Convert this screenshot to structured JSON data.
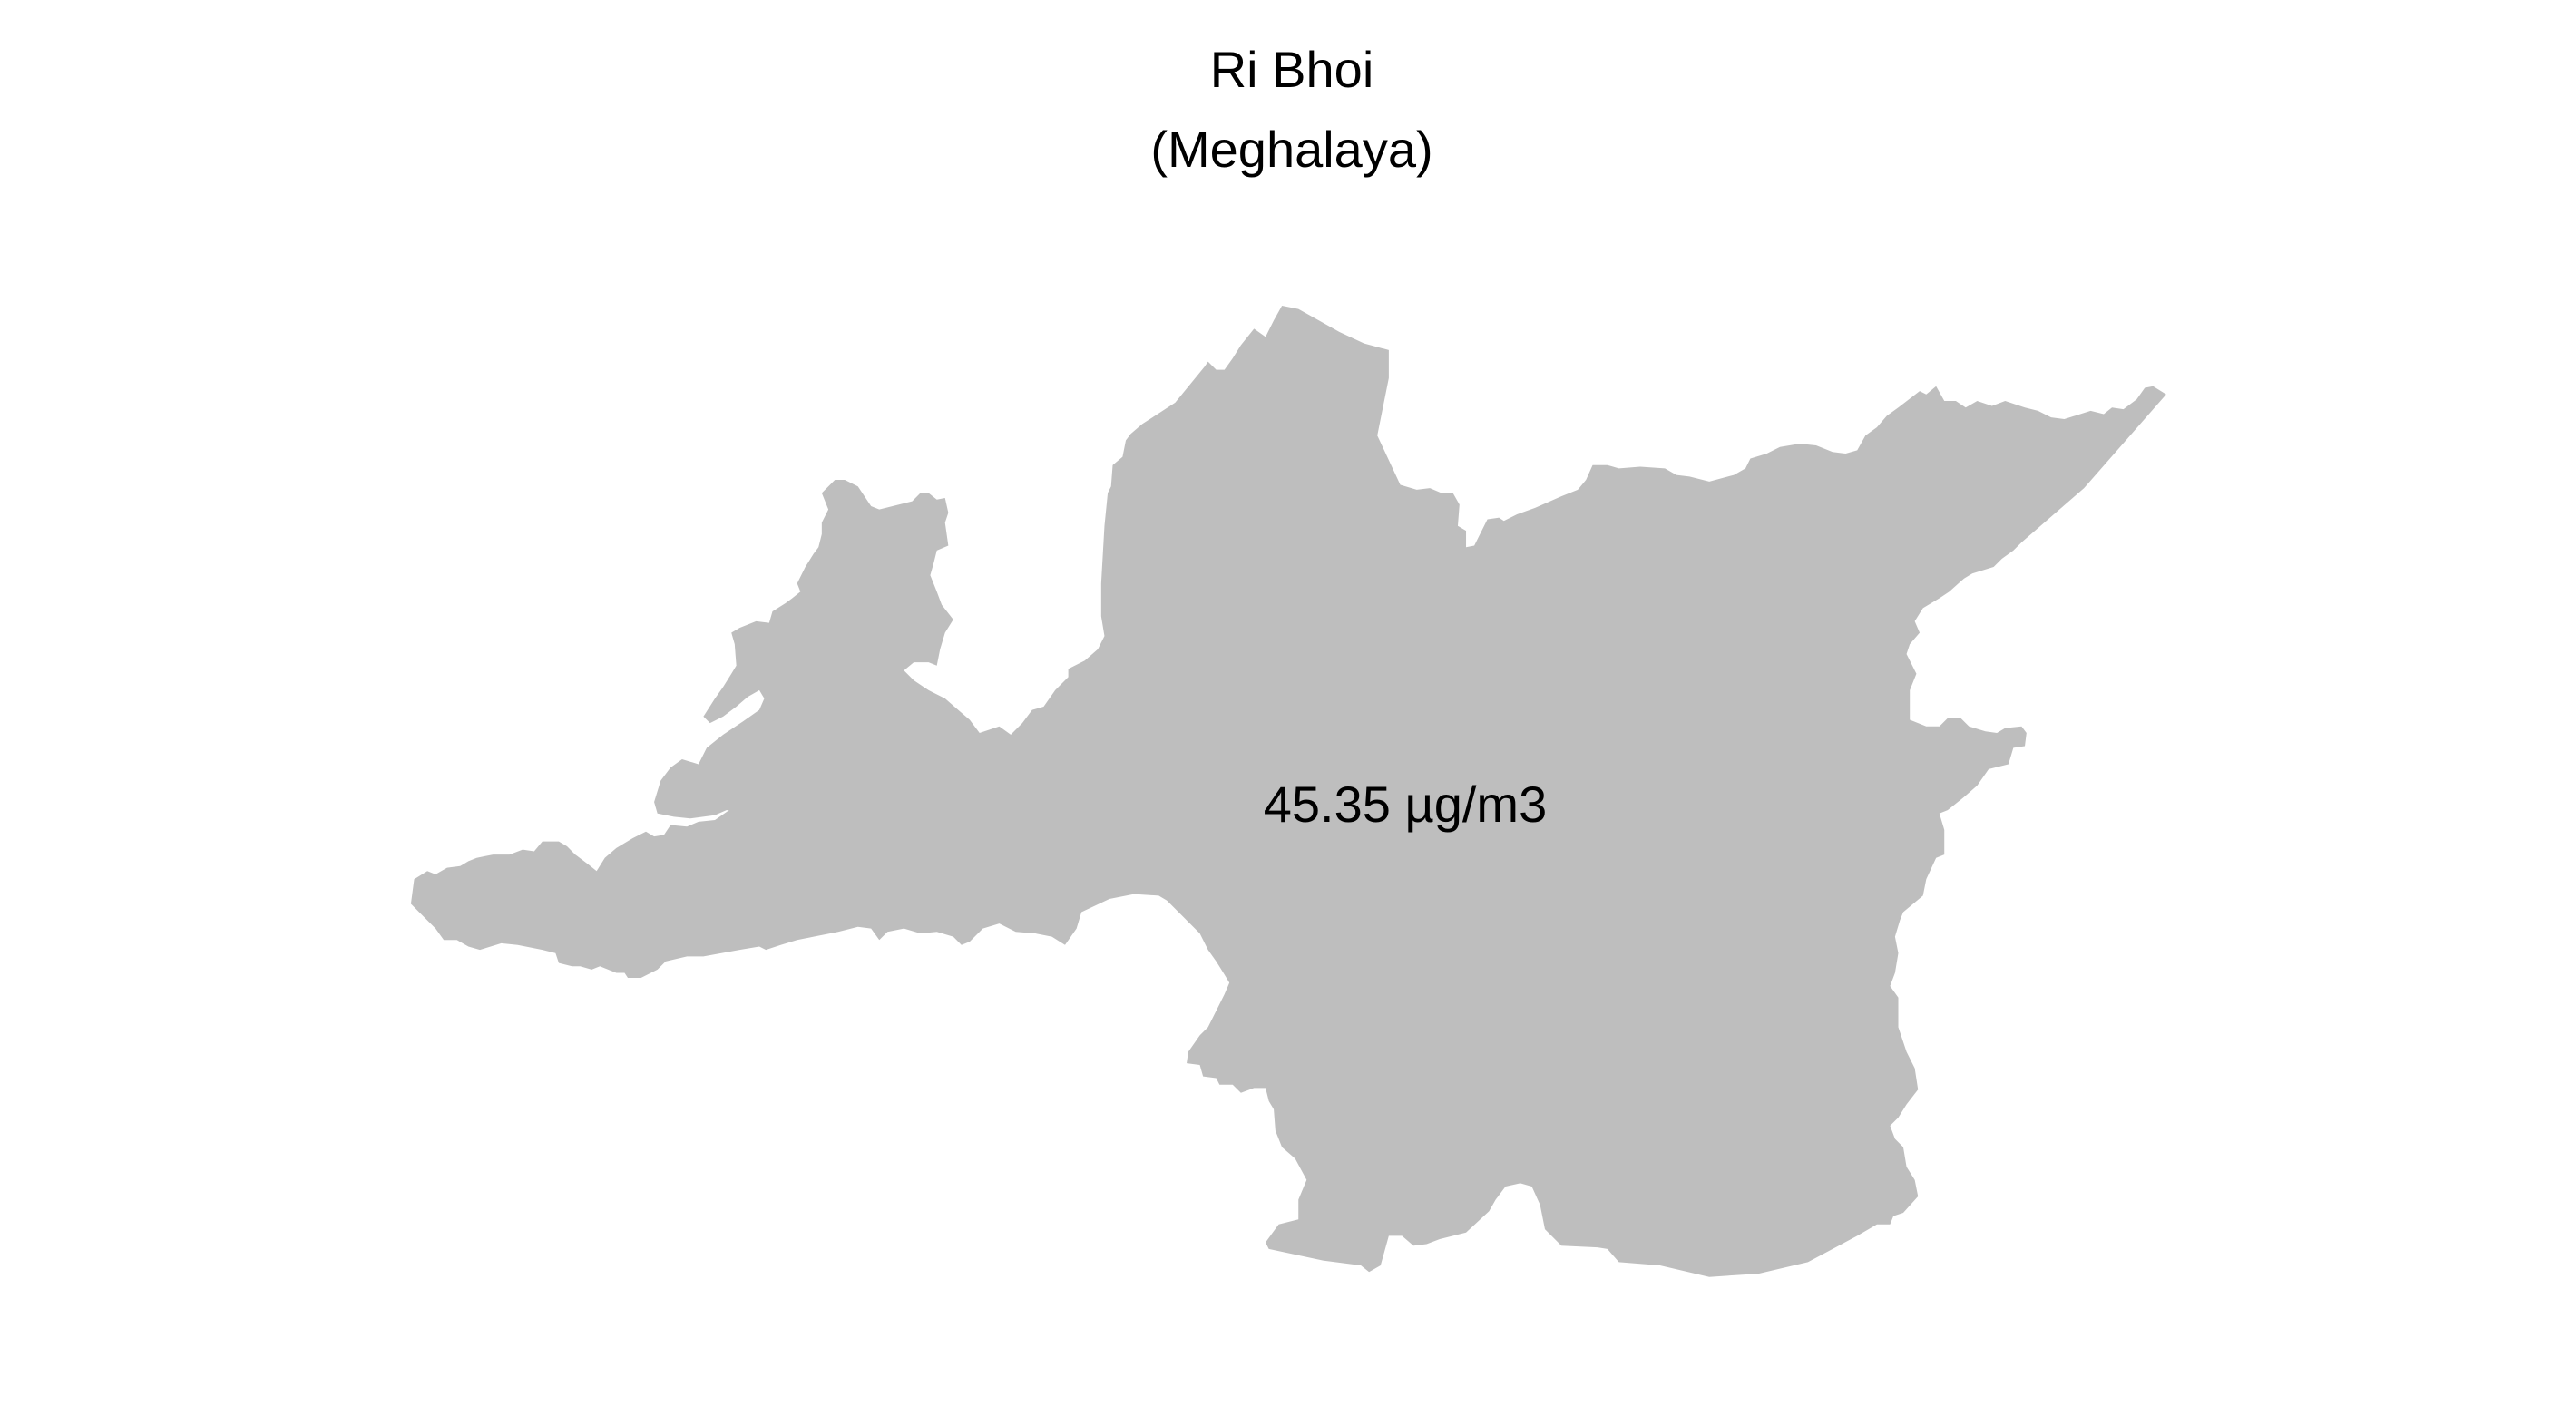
{
  "map": {
    "title": "Ri Bhoi",
    "subtitle": "(Meghalaya)",
    "region_value_label": "45.35 µg/m3",
    "region_fill_color": "#bebebe",
    "background_color": "#ffffff"
  }
}
